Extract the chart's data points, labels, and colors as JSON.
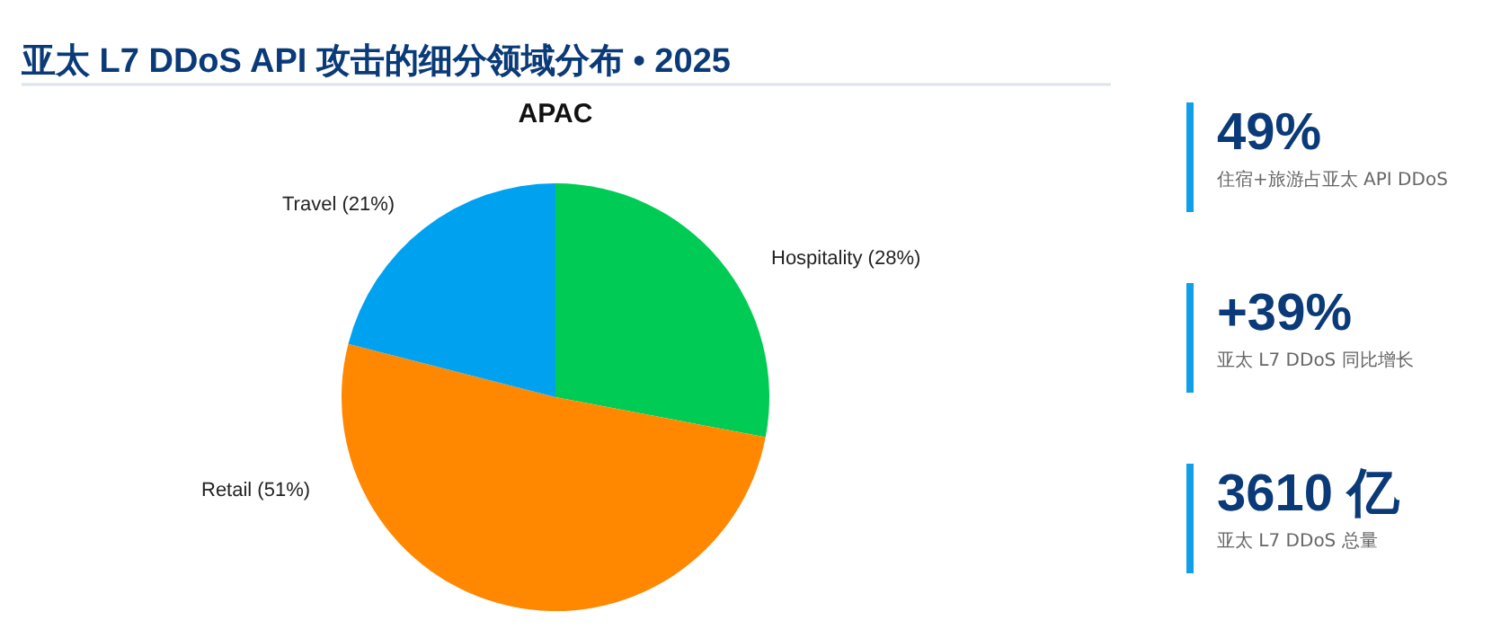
{
  "chart_data": [
    {
      "type": "pie",
      "title": "亚太 L7 DDoS API 攻击的细分领域分布 • 2025",
      "subtitle": "APAC",
      "categories": [
        "Hospitality",
        "Retail",
        "Travel"
      ],
      "values": [
        28,
        51,
        21
      ],
      "value_labels": [
        "(28%)",
        "(51%)",
        "(21%)"
      ],
      "colors": [
        "#00cc55",
        "#ff8800",
        "#00a2f0"
      ],
      "legend": false
    },
    {
      "type": "other",
      "annotations": [
        "49%",
        "住宿+旅游占亚太 API DDoS",
        "+39%",
        "亚太 L7 DDoS 同比增长",
        "3610 亿",
        "亚太 L7 DDoS 总量"
      ]
    }
  ]
}
